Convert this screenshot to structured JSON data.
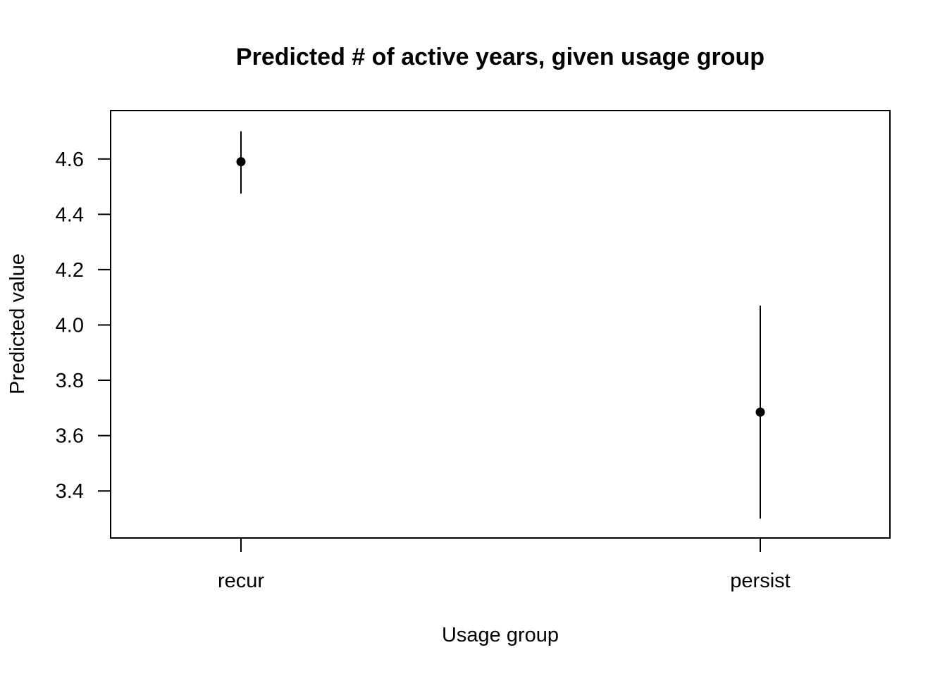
{
  "chart_data": {
    "type": "scatter",
    "title": "Predicted # of active years, given usage group",
    "xlabel": "Usage group",
    "ylabel": "Predicted value",
    "categories": [
      "recur",
      "persist"
    ],
    "series": [
      {
        "values": [
          4.59,
          3.685
        ],
        "lower": [
          4.475,
          3.3
        ],
        "upper": [
          4.7,
          4.07
        ]
      }
    ],
    "ylim": [
      3.23,
      4.775
    ],
    "yticks": [
      3.4,
      3.6,
      3.8,
      4.0,
      4.2,
      4.4,
      4.6
    ],
    "ytick_labels": [
      "3.4",
      "3.6",
      "3.8",
      "4.0",
      "4.2",
      "4.4",
      "4.6"
    ],
    "grid": false,
    "colors": {
      "marker": "#000000",
      "axis": "#000000",
      "background": "#ffffff"
    }
  }
}
